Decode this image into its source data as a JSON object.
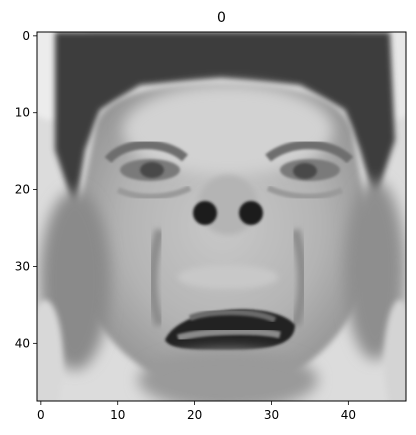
{
  "chart_data": {
    "type": "heatmap",
    "title": "0",
    "xlabel": "",
    "ylabel": "",
    "xlim": [
      -0.5,
      47.5
    ],
    "ylim": [
      47.5,
      -0.5
    ],
    "x_ticks": [
      0,
      10,
      20,
      30,
      40
    ],
    "y_ticks": [
      0,
      10,
      20,
      30,
      40
    ],
    "grid": false,
    "colormap": "gray",
    "content": "48x48 grayscale image of a face with raised eyebrows and an open mouth"
  }
}
